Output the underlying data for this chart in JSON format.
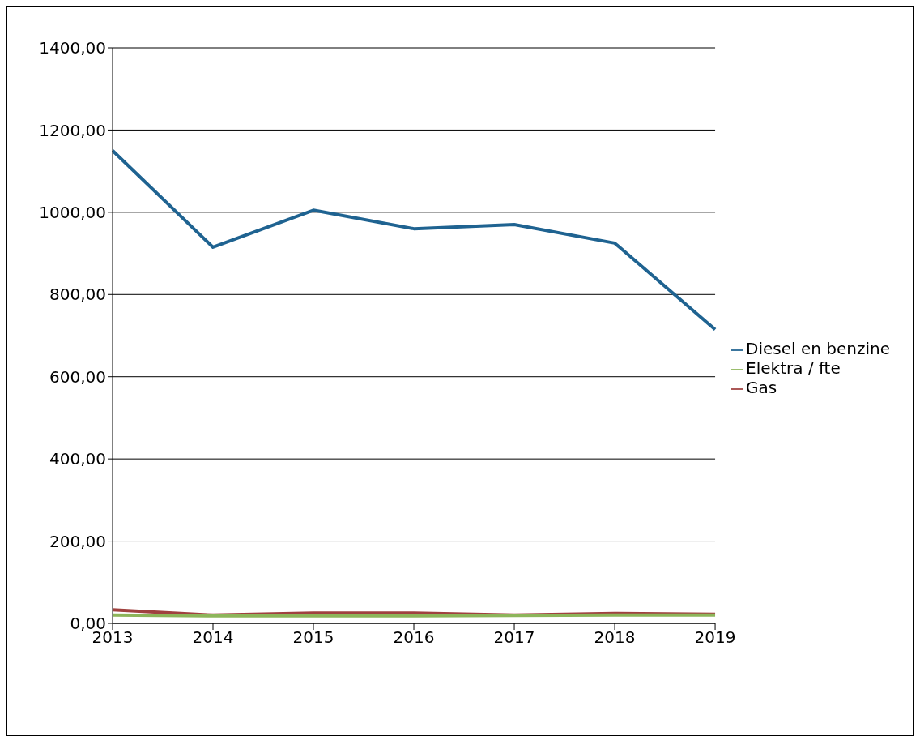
{
  "chart_data": {
    "type": "line",
    "categories": [
      "2013",
      "2014",
      "2015",
      "2016",
      "2017",
      "2018",
      "2019"
    ],
    "series": [
      {
        "name": "Diesel en benzine",
        "color": "#1f6391",
        "values": [
          1150,
          915,
          1005,
          960,
          970,
          925,
          715
        ]
      },
      {
        "name": "Gas",
        "color": "#a0413f",
        "values": [
          33,
          20,
          25,
          25,
          20,
          24,
          22
        ]
      },
      {
        "name": "Elektra / fte",
        "color": "#8db55a",
        "values": [
          20,
          18,
          18,
          18,
          19,
          20,
          20
        ]
      }
    ],
    "ylim": [
      0,
      1400
    ],
    "yticks": [
      {
        "value": 0,
        "label": "0,00"
      },
      {
        "value": 200,
        "label": "200,00"
      },
      {
        "value": 400,
        "label": "400,00"
      },
      {
        "value": 600,
        "label": "600,00"
      },
      {
        "value": 800,
        "label": "800,00"
      },
      {
        "value": 1000,
        "label": "1000,00"
      },
      {
        "value": 1200,
        "label": "1200,00"
      },
      {
        "value": 1400,
        "label": "1400,00"
      }
    ],
    "grid": "y",
    "legend": "right",
    "marker": "none"
  }
}
